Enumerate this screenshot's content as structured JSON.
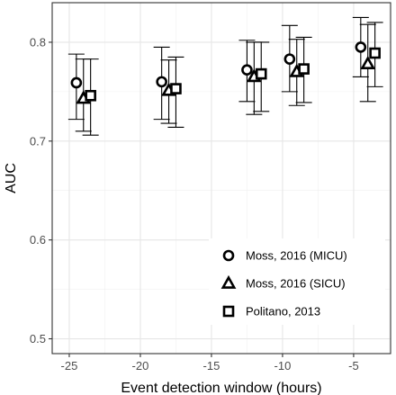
{
  "chart_data": {
    "type": "scatter",
    "xlabel": "Event detection window (hours)",
    "ylabel": "AUC",
    "xlim": [
      -26.2,
      -2.4
    ],
    "ylim": [
      0.485,
      0.84
    ],
    "x_ticks": [
      -25,
      -20,
      -15,
      -10,
      -5
    ],
    "x_tick_labels": [
      "-25",
      "-20",
      "-15",
      "-10",
      "-5"
    ],
    "y_ticks": [
      0.5,
      0.6,
      0.7,
      0.8
    ],
    "y_tick_labels": [
      "0.5",
      "0.6",
      "0.7",
      "0.8"
    ],
    "grid": true,
    "legend_position": "bottom-right",
    "categories": [
      -24,
      -18,
      -12,
      -9,
      -4
    ],
    "series": [
      {
        "name": "Moss, 2016 (MICU)",
        "marker": "circle",
        "x": [
          -24.5,
          -18.5,
          -12.5,
          -9.5,
          -4.5
        ],
        "y": [
          0.759,
          0.76,
          0.772,
          0.783,
          0.795
        ],
        "err_low": [
          0.722,
          0.722,
          0.74,
          0.75,
          0.765
        ],
        "err_high": [
          0.788,
          0.795,
          0.802,
          0.817,
          0.825
        ]
      },
      {
        "name": "Moss, 2016 (SICU)",
        "marker": "triangle",
        "x": [
          -24.0,
          -18.0,
          -12.0,
          -9.0,
          -4.0
        ],
        "y": [
          0.743,
          0.751,
          0.765,
          0.77,
          0.778
        ],
        "err_low": [
          0.71,
          0.718,
          0.727,
          0.736,
          0.74
        ],
        "err_high": [
          0.783,
          0.782,
          0.8,
          0.803,
          0.818
        ]
      },
      {
        "name": "Politano, 2013",
        "marker": "square",
        "x": [
          -23.5,
          -17.5,
          -11.5,
          -8.5,
          -3.5
        ],
        "y": [
          0.746,
          0.753,
          0.768,
          0.773,
          0.789
        ],
        "err_low": [
          0.706,
          0.714,
          0.73,
          0.739,
          0.755
        ],
        "err_high": [
          0.783,
          0.785,
          0.8,
          0.805,
          0.82
        ]
      }
    ]
  }
}
